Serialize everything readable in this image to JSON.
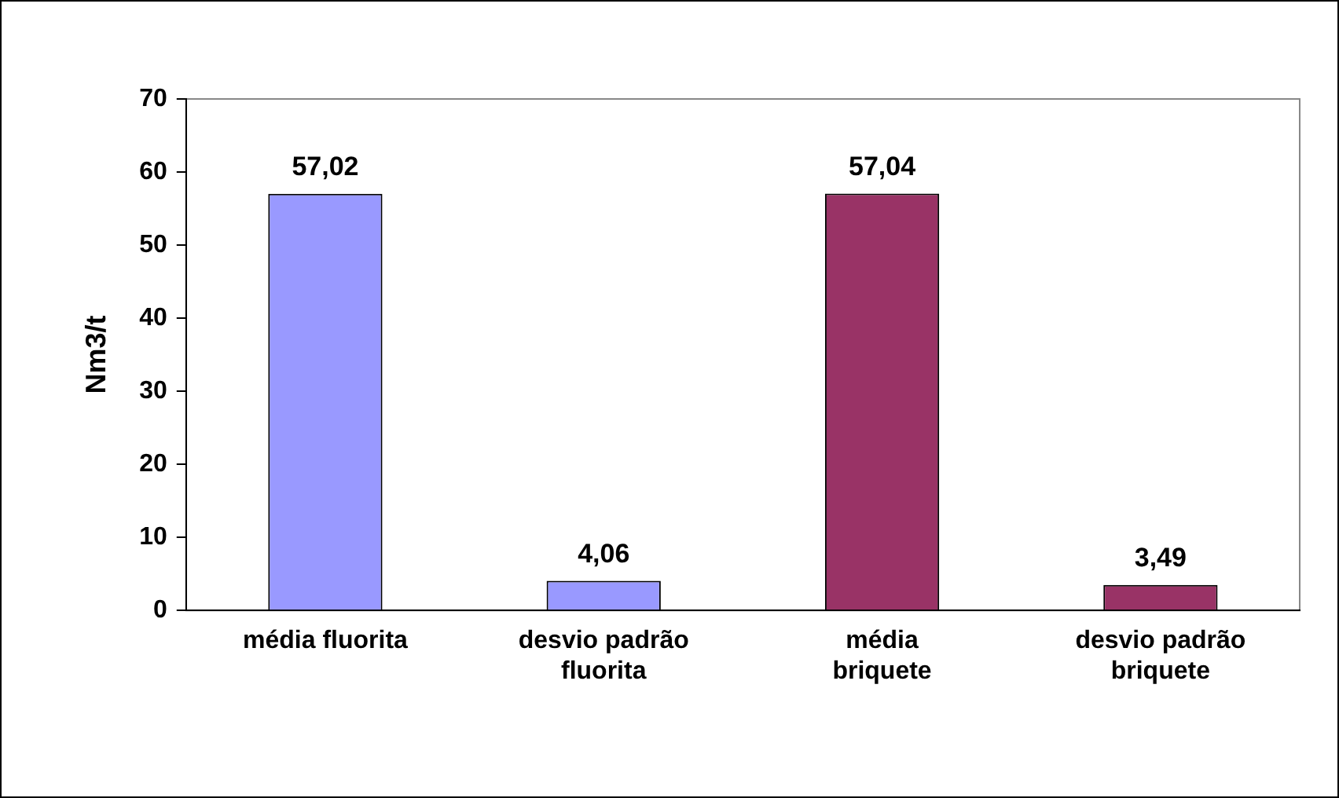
{
  "chart_data": {
    "type": "bar",
    "ylabel": "Nm3/t",
    "categories": [
      "média fluorita",
      "desvio padrão\nfluorita",
      "média\nbriquete",
      "desvio padrão\nbriquete"
    ],
    "values": [
      57.02,
      4.06,
      57.04,
      3.49
    ],
    "colors": [
      "#9999ff",
      "#9999ff",
      "#993366",
      "#993366"
    ],
    "value_labels": [
      "57,02",
      "4,06",
      "57,04",
      "3,49"
    ],
    "ylim": [
      0,
      70
    ],
    "yticks": [
      0,
      10,
      20,
      30,
      40,
      50,
      60,
      70
    ],
    "grid": false,
    "legend": false
  }
}
